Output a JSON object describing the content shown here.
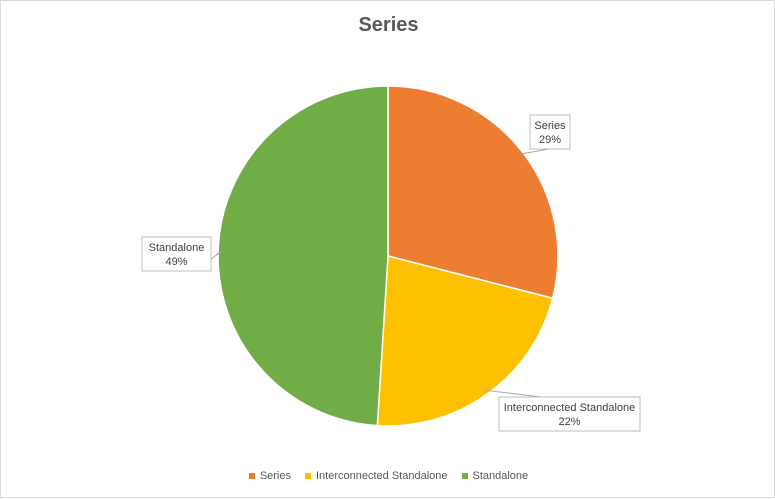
{
  "chart_data": {
    "type": "pie",
    "title": "Series",
    "categories": [
      "Series",
      "Interconnected Standalone",
      "Standalone"
    ],
    "values": [
      29,
      22,
      49
    ],
    "value_labels": [
      "29%",
      "22%",
      "49%"
    ],
    "colors": [
      "#ED7D31",
      "#FFC000",
      "#70AD47"
    ],
    "start_angle_deg": 0,
    "direction": "clockwise",
    "legend_position": "bottom",
    "data_labels": "callout"
  }
}
